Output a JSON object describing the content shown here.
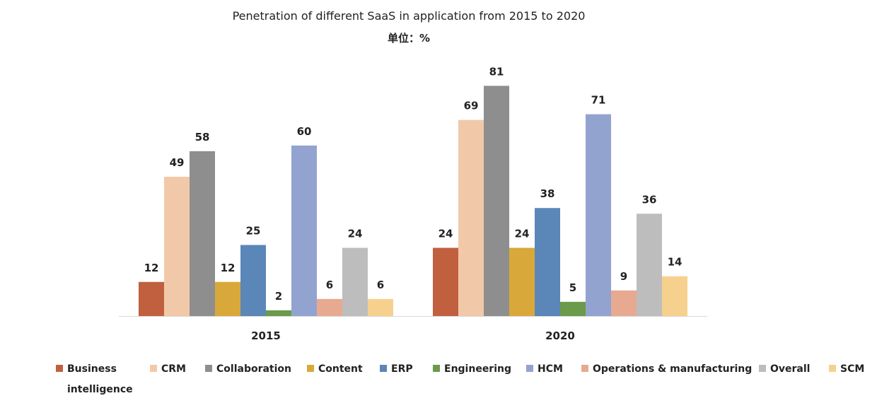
{
  "chart_data": {
    "type": "bar",
    "title": "Penetration of  different SaaS in application from 2015 to 2020",
    "subtitle": "单位：%",
    "categories": [
      "2015",
      "2020"
    ],
    "series": [
      {
        "name": "Business intelligence",
        "values": [
          12,
          24
        ],
        "color": "#c0603f"
      },
      {
        "name": "CRM",
        "values": [
          49,
          69
        ],
        "color": "#f2c9a8"
      },
      {
        "name": "Collaboration",
        "values": [
          58,
          81
        ],
        "color": "#8e8e8e"
      },
      {
        "name": "Content",
        "values": [
          12,
          24
        ],
        "color": "#d9a83a"
      },
      {
        "name": "ERP",
        "values": [
          25,
          38
        ],
        "color": "#5b86b8"
      },
      {
        "name": "Engineering",
        "values": [
          2,
          5
        ],
        "color": "#6a9a4a"
      },
      {
        "name": "HCM",
        "values": [
          60,
          71
        ],
        "color": "#93a3d0"
      },
      {
        "name": "Operations & manufacturing",
        "values": [
          6,
          9
        ],
        "color": "#e8a991"
      },
      {
        "name": "Overall",
        "values": [
          24,
          36
        ],
        "color": "#bdbdbd"
      },
      {
        "name": "SCM",
        "values": [
          6,
          14
        ],
        "color": "#f6d18e"
      }
    ],
    "ylim": [
      0,
      90
    ],
    "grid": false,
    "legend_position": "bottom",
    "data_labels": true
  }
}
